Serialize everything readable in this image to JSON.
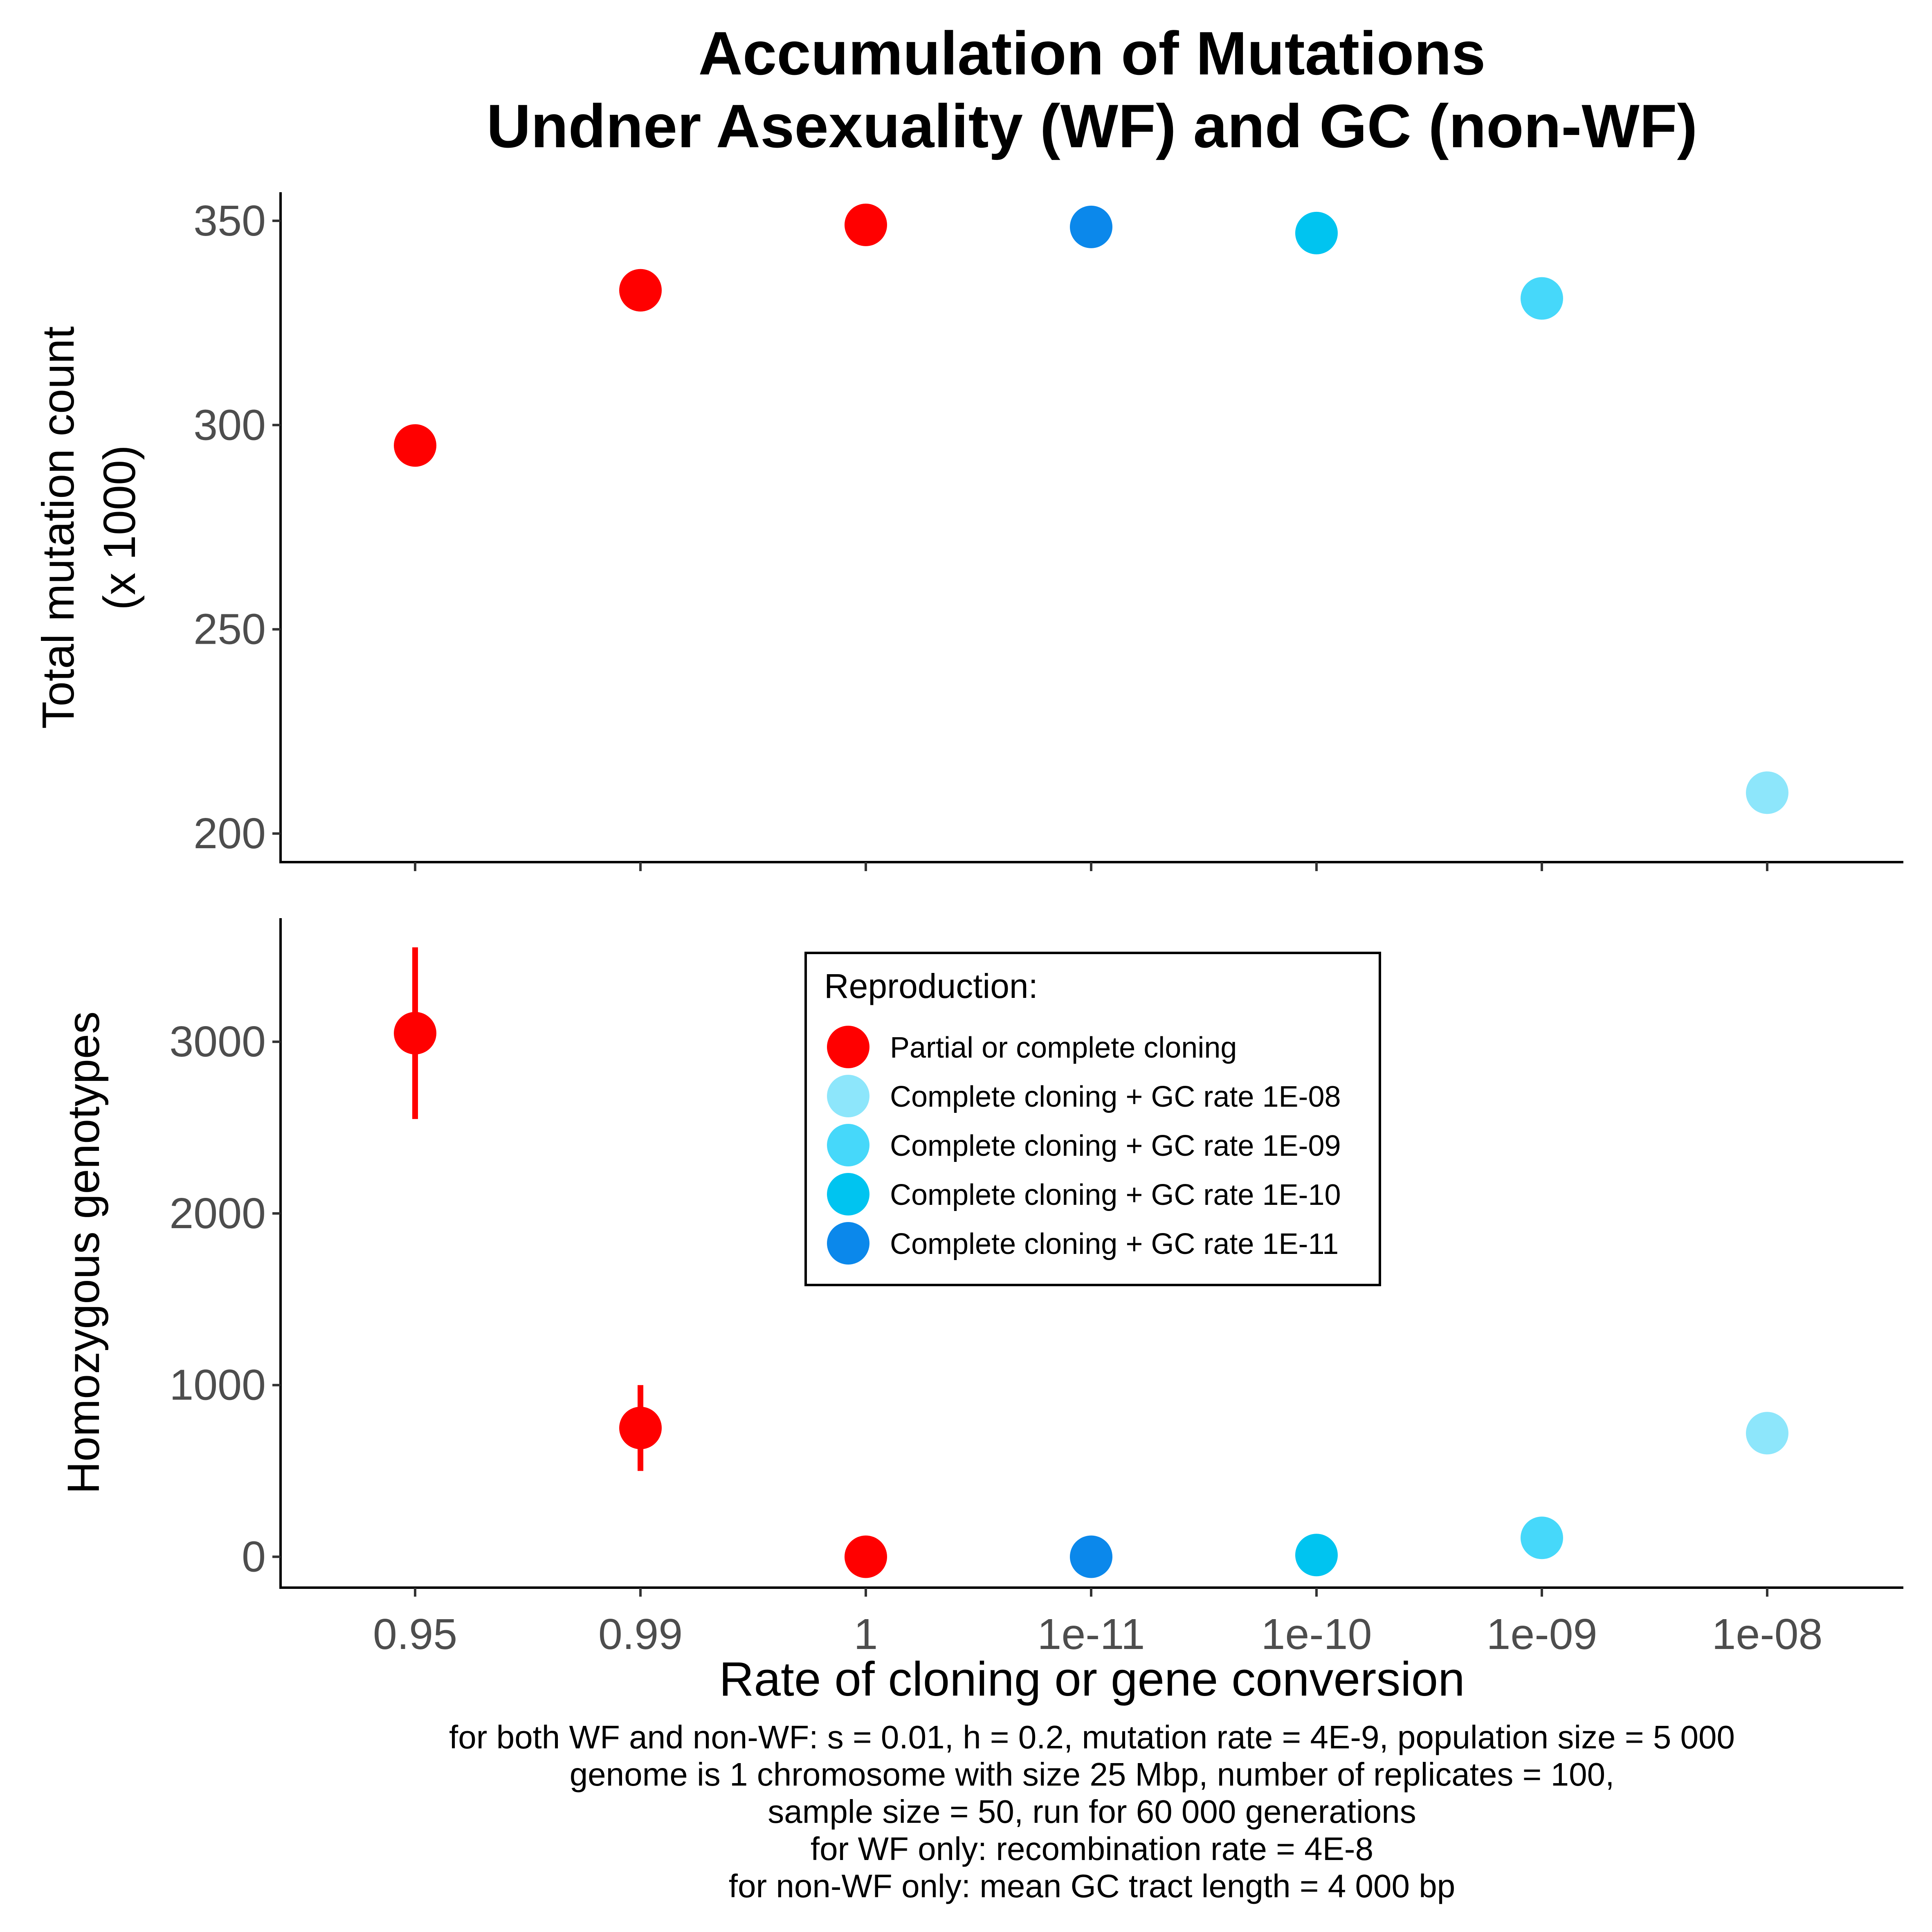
{
  "title_line1": "Accumulation of Mutations",
  "title_line2": "Undner Asexuality (WF) and GC (non-WF)",
  "x_axis_label": "Rate of cloning or gene conversion",
  "caption_lines": [
    "for both WF and non-WF: s = 0.01, h = 0.2, mutation rate = 4E-9, population size = 5 000",
    "genome is 1 chromosome with size 25 Mbp, number of replicates = 100,",
    "sample size = 50, run for 60 000 generations",
    "for WF only: recombination rate = 4E-8",
    "for non-WF only: mean GC tract length = 4 000 bp"
  ],
  "legend": {
    "title": "Reproduction:",
    "position": "top-center of lower panel",
    "entries": [
      {
        "label": "Partial or complete cloning",
        "color": "#FF0000"
      },
      {
        "label": "Complete cloning + GC  rate 1E-08",
        "color": "#8DE6FB"
      },
      {
        "label": "Complete cloning + GC  rate 1E-09",
        "color": "#46D8FA"
      },
      {
        "label": "Complete cloning + GC  rate 1E-10",
        "color": "#00C4F0"
      },
      {
        "label": "Complete cloning + GC  rate 1E-11",
        "color": "#0B88EB"
      }
    ]
  },
  "chart_data": [
    {
      "type": "scatter",
      "panel": "top",
      "ylabel_line1": "Total mutation count",
      "ylabel_line2": "(x 1000)",
      "categories": [
        "0.95",
        "0.99",
        "1",
        "1e-11",
        "1e-10",
        "1e-09",
        "1e-08"
      ],
      "ylim": [
        193,
        357
      ],
      "yticks": [
        200,
        250,
        300,
        350
      ],
      "grid": false,
      "points": [
        {
          "x": "0.95",
          "y": 295,
          "color": "#FF0000"
        },
        {
          "x": "0.99",
          "y": 333,
          "color": "#FF0000"
        },
        {
          "x": "1",
          "y": 349,
          "color": "#FF0000"
        },
        {
          "x": "1e-11",
          "y": 348.5,
          "color": "#0B88EB"
        },
        {
          "x": "1e-10",
          "y": 347,
          "color": "#00C4F0"
        },
        {
          "x": "1e-09",
          "y": 331,
          "color": "#46D8FA"
        },
        {
          "x": "1e-08",
          "y": 210,
          "color": "#8DE6FB"
        }
      ]
    },
    {
      "type": "scatter",
      "panel": "bottom",
      "ylabel": "Homozygous genotypes",
      "xlabel": "Rate of cloning or gene conversion",
      "categories": [
        "0.95",
        "0.99",
        "1",
        "1e-11",
        "1e-10",
        "1e-09",
        "1e-08"
      ],
      "ylim": [
        -180,
        3720
      ],
      "yticks": [
        0,
        1000,
        2000,
        3000
      ],
      "grid": false,
      "points": [
        {
          "x": "0.95",
          "y": 3050,
          "ymin": 2550,
          "ymax": 3550,
          "color": "#FF0000"
        },
        {
          "x": "0.99",
          "y": 750,
          "ymin": 500,
          "ymax": 1000,
          "color": "#FF0000"
        },
        {
          "x": "1",
          "y": 0,
          "color": "#FF0000"
        },
        {
          "x": "1e-11",
          "y": 0,
          "color": "#0B88EB"
        },
        {
          "x": "1e-10",
          "y": 10,
          "color": "#00C4F0"
        },
        {
          "x": "1e-09",
          "y": 110,
          "color": "#46D8FA"
        },
        {
          "x": "1e-08",
          "y": 720,
          "color": "#8DE6FB"
        }
      ]
    }
  ]
}
